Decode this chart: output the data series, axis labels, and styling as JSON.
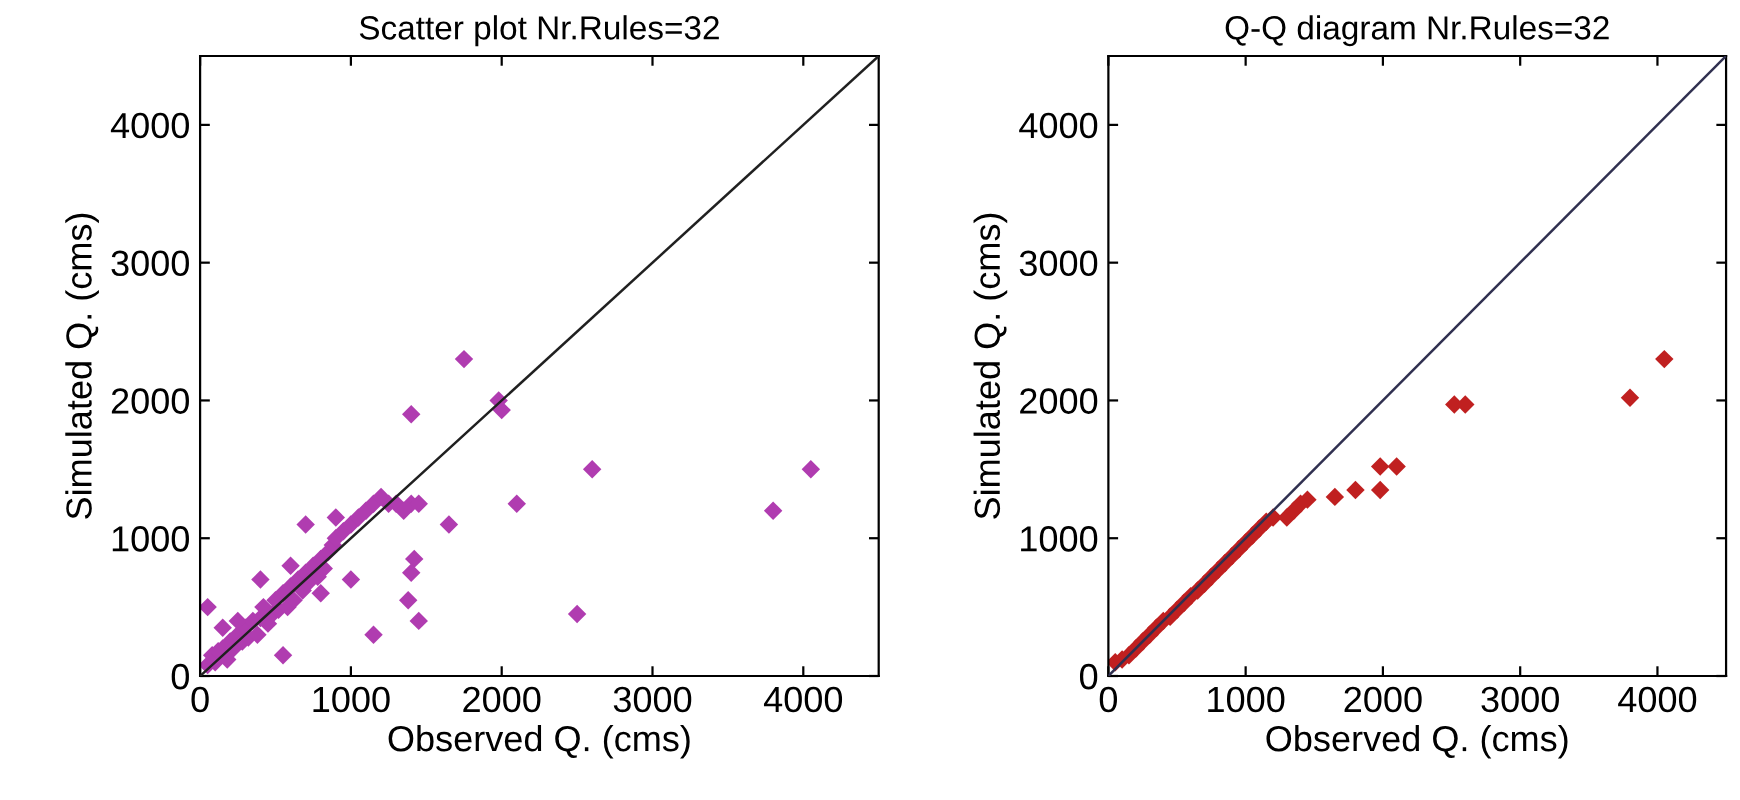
{
  "chart_data": [
    {
      "type": "scatter",
      "title": "Scatter plot Nr.Rules=32",
      "xlabel": "Observed Q. (cms)",
      "ylabel": "Simulated Q. (cms)",
      "xlim": [
        0,
        4500
      ],
      "ylim": [
        0,
        4500
      ],
      "xticks": [
        0,
        1000,
        2000,
        3000,
        4000
      ],
      "yticks": [
        0,
        1000,
        2000,
        3000,
        4000
      ],
      "grid": false,
      "legend": false,
      "series": [
        {
          "color": "#b03cb0",
          "marker": "diamond",
          "x": [
            50,
            80,
            100,
            120,
            150,
            180,
            200,
            220,
            250,
            280,
            300,
            320,
            350,
            380,
            400,
            420,
            450,
            480,
            500,
            520,
            550,
            580,
            600,
            620,
            650,
            680,
            700,
            720,
            750,
            780,
            800,
            820,
            850,
            880,
            900,
            950,
            1000,
            1050,
            1100,
            1150,
            1200,
            1250,
            1300,
            1350,
            1400,
            1450,
            1650,
            1750,
            1400,
            1980,
            2000,
            2100,
            2600,
            2500,
            3800,
            4050,
            1420,
            1400,
            1380,
            1450,
            1150,
            1000,
            550,
            50,
            400,
            700,
            900,
            250,
            150,
            600,
            800
          ],
          "values": [
            80,
            150,
            100,
            180,
            200,
            120,
            250,
            200,
            300,
            250,
            350,
            280,
            400,
            300,
            420,
            500,
            380,
            450,
            550,
            480,
            600,
            500,
            650,
            550,
            700,
            620,
            750,
            680,
            800,
            720,
            850,
            780,
            900,
            950,
            1000,
            1050,
            1100,
            1150,
            1200,
            1250,
            1300,
            1250,
            1250,
            1200,
            1250,
            1250,
            1100,
            2300,
            1900,
            2000,
            1930,
            1250,
            1500,
            450,
            1200,
            1500,
            850,
            750,
            550,
            400,
            300,
            700,
            150,
            500,
            700,
            1100,
            1150,
            400,
            350,
            800,
            600
          ]
        },
        {
          "type": "line",
          "color": "#202020",
          "marker": "none",
          "line_style": "solid",
          "x": [
            0,
            4500
          ],
          "values": [
            0,
            4500
          ]
        }
      ]
    },
    {
      "type": "scatter",
      "title": "Q-Q diagram Nr.Rules=32",
      "xlabel": "Observed Q. (cms)",
      "ylabel": "Simulated Q. (cms)",
      "xlim": [
        0,
        4500
      ],
      "ylim": [
        0,
        4500
      ],
      "xticks": [
        0,
        1000,
        2000,
        3000,
        4000
      ],
      "yticks": [
        0,
        1000,
        2000,
        3000,
        4000
      ],
      "grid": false,
      "legend": false,
      "series": [
        {
          "color": "#c02020",
          "marker": "diamond",
          "x": [
            50,
            100,
            150,
            200,
            250,
            300,
            350,
            400,
            450,
            500,
            550,
            600,
            650,
            700,
            750,
            800,
            850,
            900,
            950,
            1000,
            1050,
            1100,
            1150,
            1200,
            1300,
            1350,
            1400,
            1450,
            1650,
            1800,
            1980,
            1980,
            2100,
            2520,
            2600,
            3800,
            4050
          ],
          "values": [
            100,
            120,
            150,
            200,
            250,
            300,
            350,
            400,
            430,
            480,
            530,
            580,
            620,
            670,
            720,
            770,
            820,
            870,
            920,
            970,
            1020,
            1070,
            1120,
            1150,
            1150,
            1200,
            1250,
            1280,
            1300,
            1350,
            1350,
            1520,
            1520,
            1970,
            1970,
            2020,
            2300
          ]
        },
        {
          "type": "line",
          "color": "#303050",
          "marker": "none",
          "line_style": "solid",
          "x": [
            0,
            4500
          ],
          "values": [
            0,
            4500
          ]
        }
      ]
    }
  ]
}
